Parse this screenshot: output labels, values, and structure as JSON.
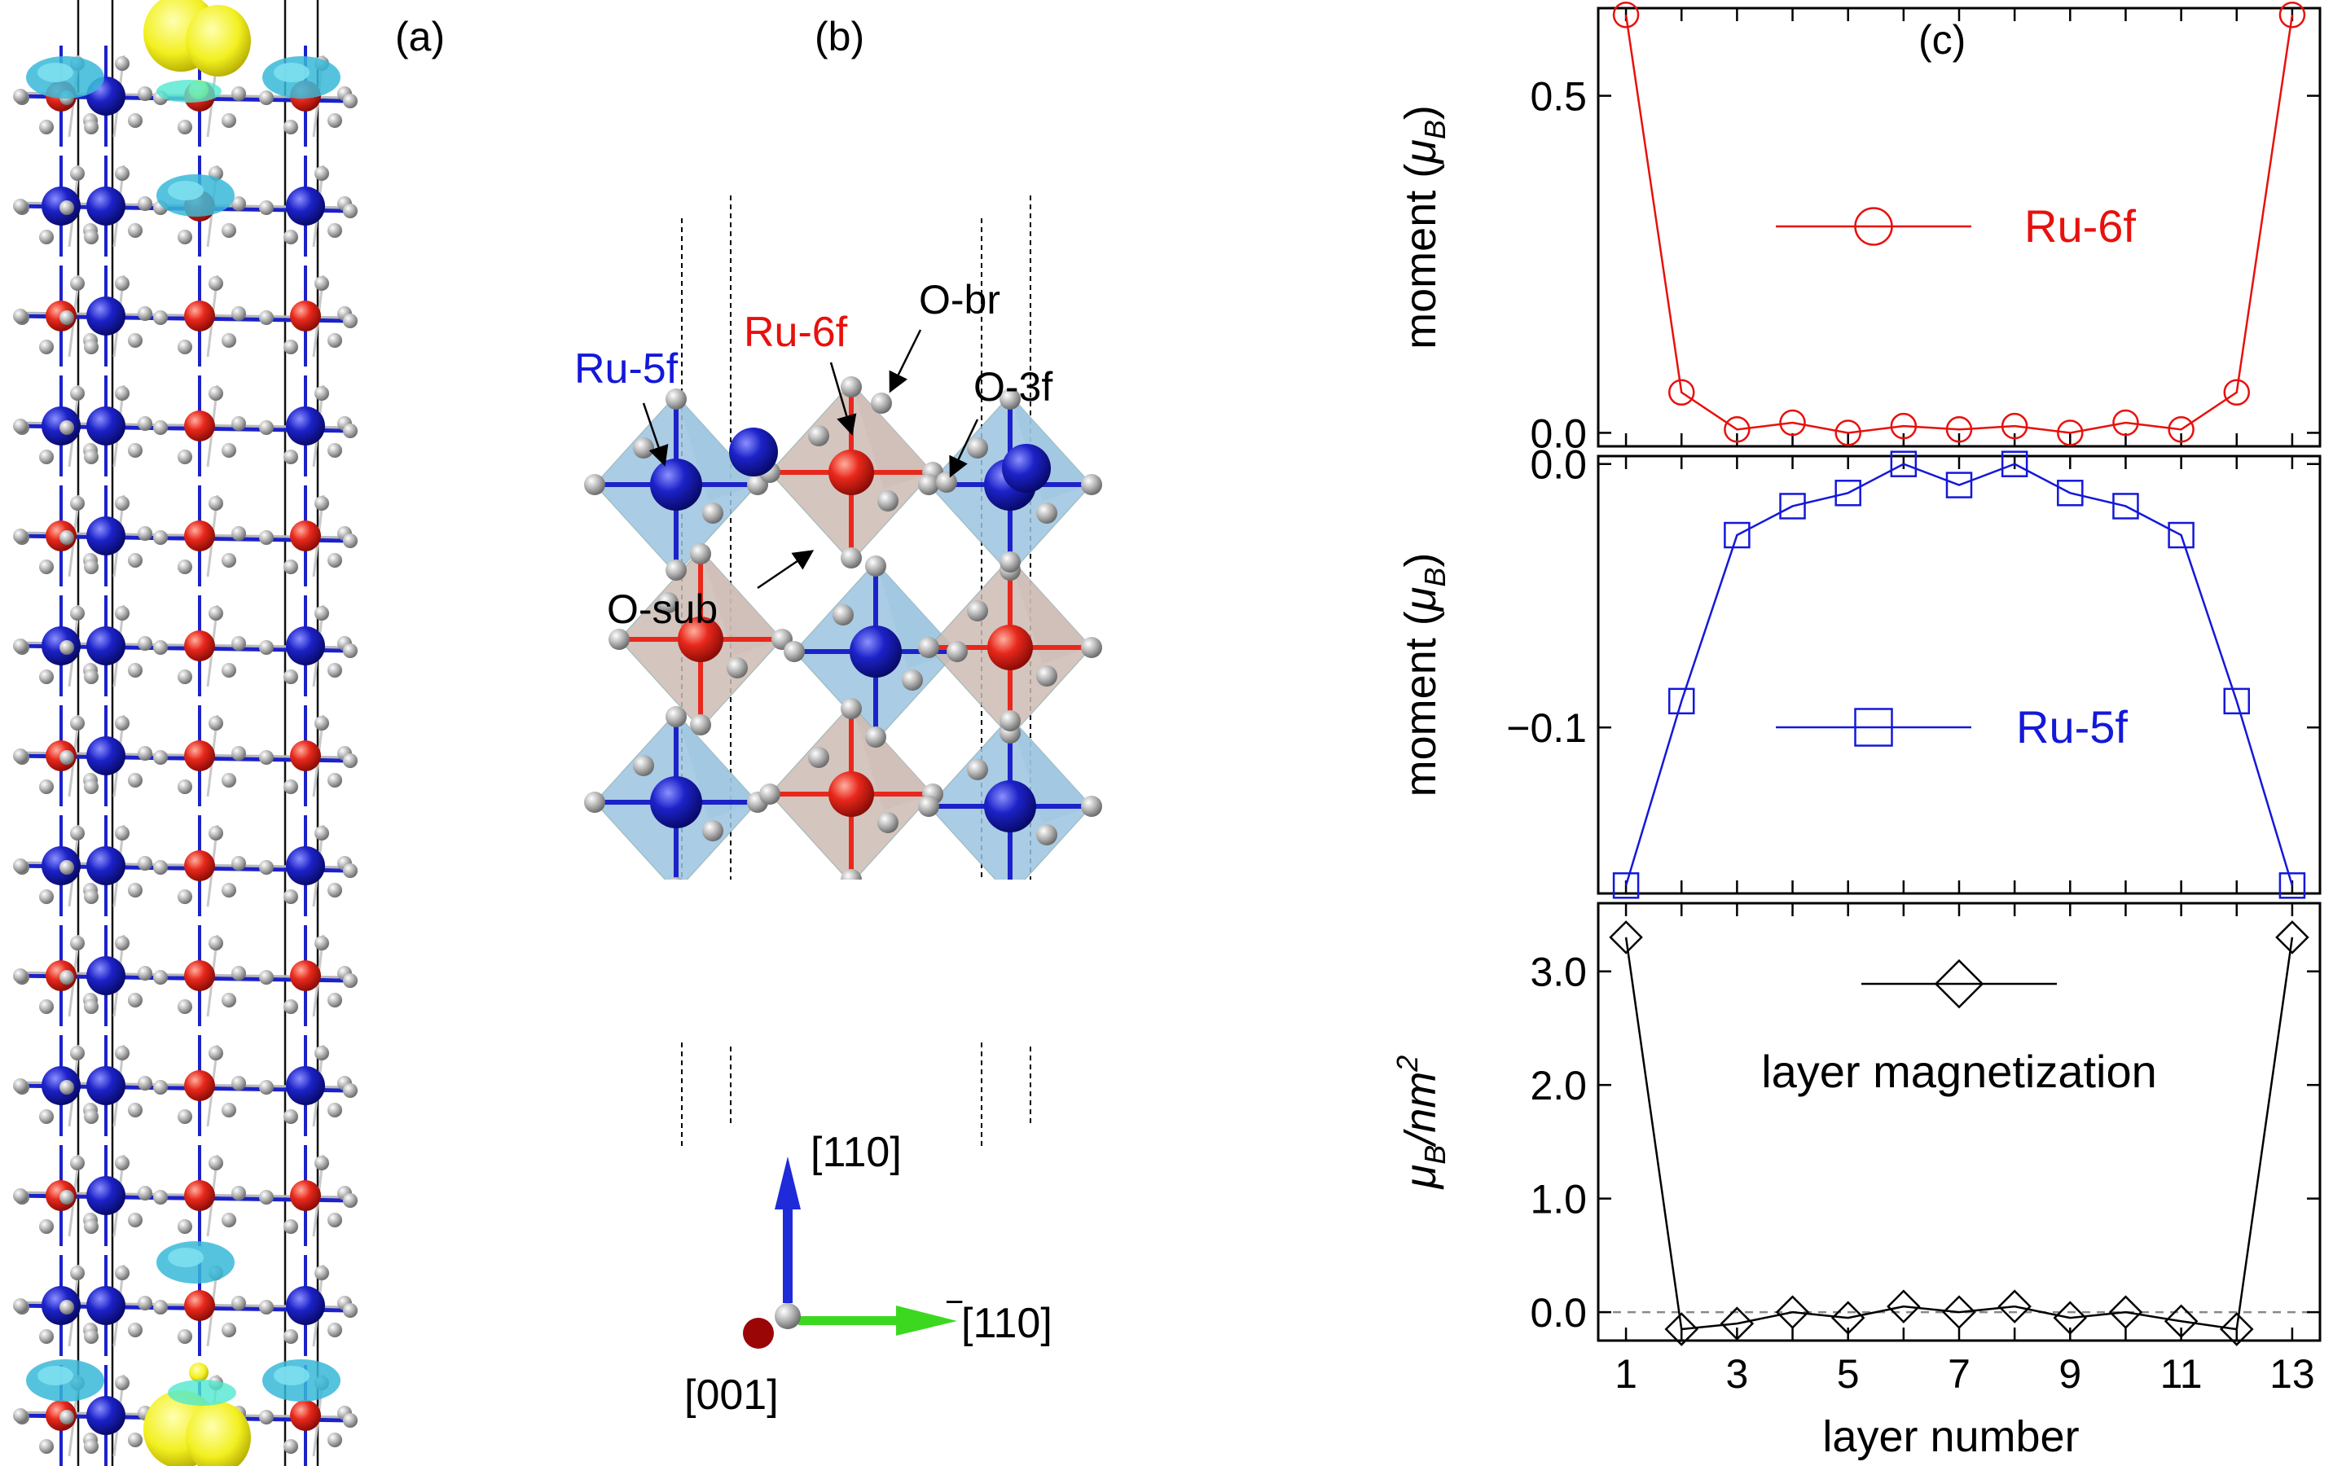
{
  "colors": {
    "red": "#e8100c",
    "blue": "#1418d8",
    "black": "#000000",
    "atom_red": "#e8281c",
    "atom_blue": "#1c22c8",
    "atom_grey": "#b8b8b8",
    "iso_cyan": "#38b8d8",
    "iso_yellow": "#f2f020",
    "oct_blue": "#9cc4e0",
    "oct_brown": "#cdbcb4"
  },
  "panels": {
    "a": {
      "label": "(a)"
    },
    "b": {
      "label": "(b)",
      "labels": {
        "ru5f": "Ru-5f",
        "ru6f": "Ru-6f",
        "obr": "O-br",
        "o3f": "O-3f",
        "osub": "O-sub"
      },
      "axes": {
        "up": "[110]",
        "right": "[110]",
        "right_bar": "−",
        "out": "[001]"
      }
    },
    "c": {
      "label": "(c)",
      "xlabel": "layer number"
    }
  },
  "chart_data": [
    {
      "type": "line",
      "ylabel": "moment (μB)",
      "ylabel_parts": [
        "moment (",
        "μ",
        "B",
        ")"
      ],
      "ylim": [
        -0.02,
        0.63
      ],
      "yticks": [
        0.0,
        0.5
      ],
      "ytick_labels": [
        "0.0",
        "0.5"
      ],
      "xlim": [
        0.5,
        13.5
      ],
      "xticks": [
        1,
        2,
        3,
        4,
        5,
        6,
        7,
        8,
        9,
        10,
        11,
        12,
        13
      ],
      "marker": "circle",
      "color": "#e8100c",
      "legend": "top-center",
      "series": [
        {
          "name": "Ru-6f",
          "x": [
            1,
            2,
            3,
            4,
            5,
            6,
            7,
            8,
            9,
            10,
            11,
            12,
            13
          ],
          "values": [
            0.62,
            0.06,
            0.005,
            0.015,
            0.0,
            0.01,
            0.005,
            0.01,
            0.0,
            0.015,
            0.005,
            0.06,
            0.62
          ]
        }
      ]
    },
    {
      "type": "line",
      "ylabel": "moment (μB)",
      "ylabel_parts": [
        "moment (",
        "μ",
        "B",
        ")"
      ],
      "ylim": [
        -0.163,
        0.003
      ],
      "yticks": [
        -0.1,
        0.0
      ],
      "ytick_labels": [
        "−0.1",
        "0.0"
      ],
      "xlim": [
        0.5,
        13.5
      ],
      "xticks": [
        1,
        2,
        3,
        4,
        5,
        6,
        7,
        8,
        9,
        10,
        11,
        12,
        13
      ],
      "marker": "square",
      "color": "#1418d8",
      "legend": "center-right",
      "series": [
        {
          "name": "Ru-5f",
          "x": [
            1,
            2,
            3,
            4,
            5,
            6,
            7,
            8,
            9,
            10,
            11,
            12,
            13
          ],
          "values": [
            -0.16,
            -0.09,
            -0.027,
            -0.016,
            -0.011,
            0.0,
            -0.008,
            0.0,
            -0.011,
            -0.016,
            -0.027,
            -0.09,
            -0.16
          ]
        }
      ]
    },
    {
      "type": "line",
      "ylabel": "μB/nm2",
      "ylabel_parts": [
        "μ",
        "B",
        "/nm",
        "2"
      ],
      "ylim": [
        -0.25,
        3.6
      ],
      "yticks": [
        0.0,
        1.0,
        2.0,
        3.0
      ],
      "ytick_labels": [
        "0.0",
        "1.0",
        "2.0",
        "3.0"
      ],
      "xlim": [
        0.5,
        13.5
      ],
      "xticks": [
        1,
        2,
        3,
        4,
        5,
        6,
        7,
        8,
        9,
        10,
        11,
        12,
        13
      ],
      "xtick_labels": [
        "1",
        "",
        "3",
        "",
        "5",
        "",
        "7",
        "",
        "9",
        "",
        "11",
        "",
        "13"
      ],
      "marker": "diamond",
      "color": "#000000",
      "legend": "top-center",
      "zero_line": true,
      "series": [
        {
          "name": "layer magnetization",
          "x": [
            1,
            2,
            3,
            4,
            5,
            6,
            7,
            8,
            9,
            10,
            11,
            12,
            13
          ],
          "values": [
            3.3,
            -0.15,
            -0.1,
            0.0,
            -0.05,
            0.05,
            0.0,
            0.05,
            -0.05,
            0.0,
            -0.08,
            -0.15,
            3.3
          ]
        }
      ]
    }
  ]
}
